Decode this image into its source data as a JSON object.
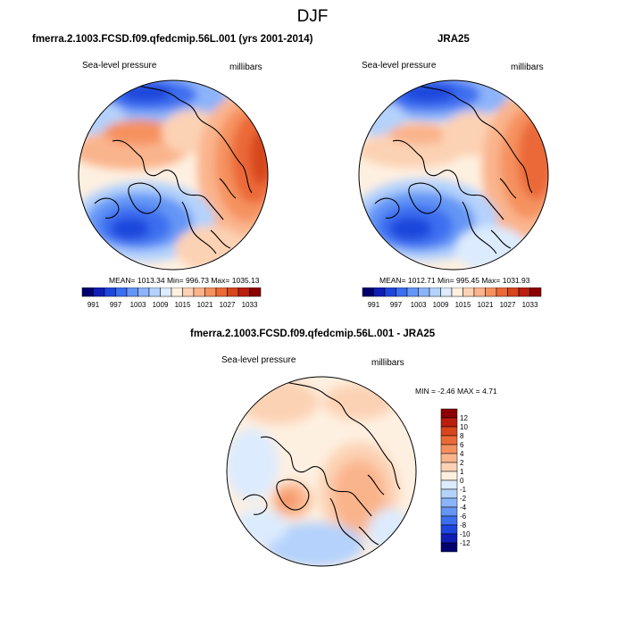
{
  "figure": {
    "title": "DJF"
  },
  "panels": {
    "model": {
      "title": "fmerra.2.1003.FCSD.f09.qfedcmip.56L.001 (yrs 2001-2014)",
      "field": "Sea-level pressure",
      "units": "millibars",
      "stats": "MEAN= 1013.34  Min= 996.73  Max= 1035.13"
    },
    "obs": {
      "title": "JRA25",
      "field": "Sea-level pressure",
      "units": "millibars",
      "stats": "MEAN= 1012.71  Min= 995.45  Max= 1031.93"
    },
    "diff": {
      "title": "fmerra.2.1003.FCSD.f09.qfedcmip.56L.001 - JRA25",
      "field": "Sea-level pressure",
      "units": "millibars",
      "stats": "MIN =  -2.46 MAX =   4.71"
    }
  },
  "colorbars": {
    "slp": {
      "labels": [
        "991",
        "997",
        "1003",
        "1009",
        "1015",
        "1021",
        "1027",
        "1033"
      ],
      "colors": [
        "#00006e",
        "#0f1eb4",
        "#1e46dc",
        "#3c6ef0",
        "#6496f5",
        "#8cb4fa",
        "#b4d2fc",
        "#dcebfe",
        "#fef0e1",
        "#fcd2b4",
        "#fab48c",
        "#f5915f",
        "#eb6937",
        "#d7461e",
        "#b91e0f",
        "#8c0000"
      ]
    },
    "diff": {
      "labels": [
        "12",
        "10",
        "8",
        "6",
        "4",
        "2",
        "1",
        "0",
        "-1",
        "-2",
        "-4",
        "-6",
        "-8",
        "-10",
        "-12"
      ],
      "colors": [
        "#8c0000",
        "#b91e0f",
        "#d7461e",
        "#eb6937",
        "#f5915f",
        "#fab48c",
        "#fcd2b4",
        "#fef0e1",
        "#dcebfe",
        "#b4d2fc",
        "#8cb4fa",
        "#6496f5",
        "#3c6ef0",
        "#1e46dc",
        "#0f1eb4",
        "#00006e"
      ]
    }
  }
}
